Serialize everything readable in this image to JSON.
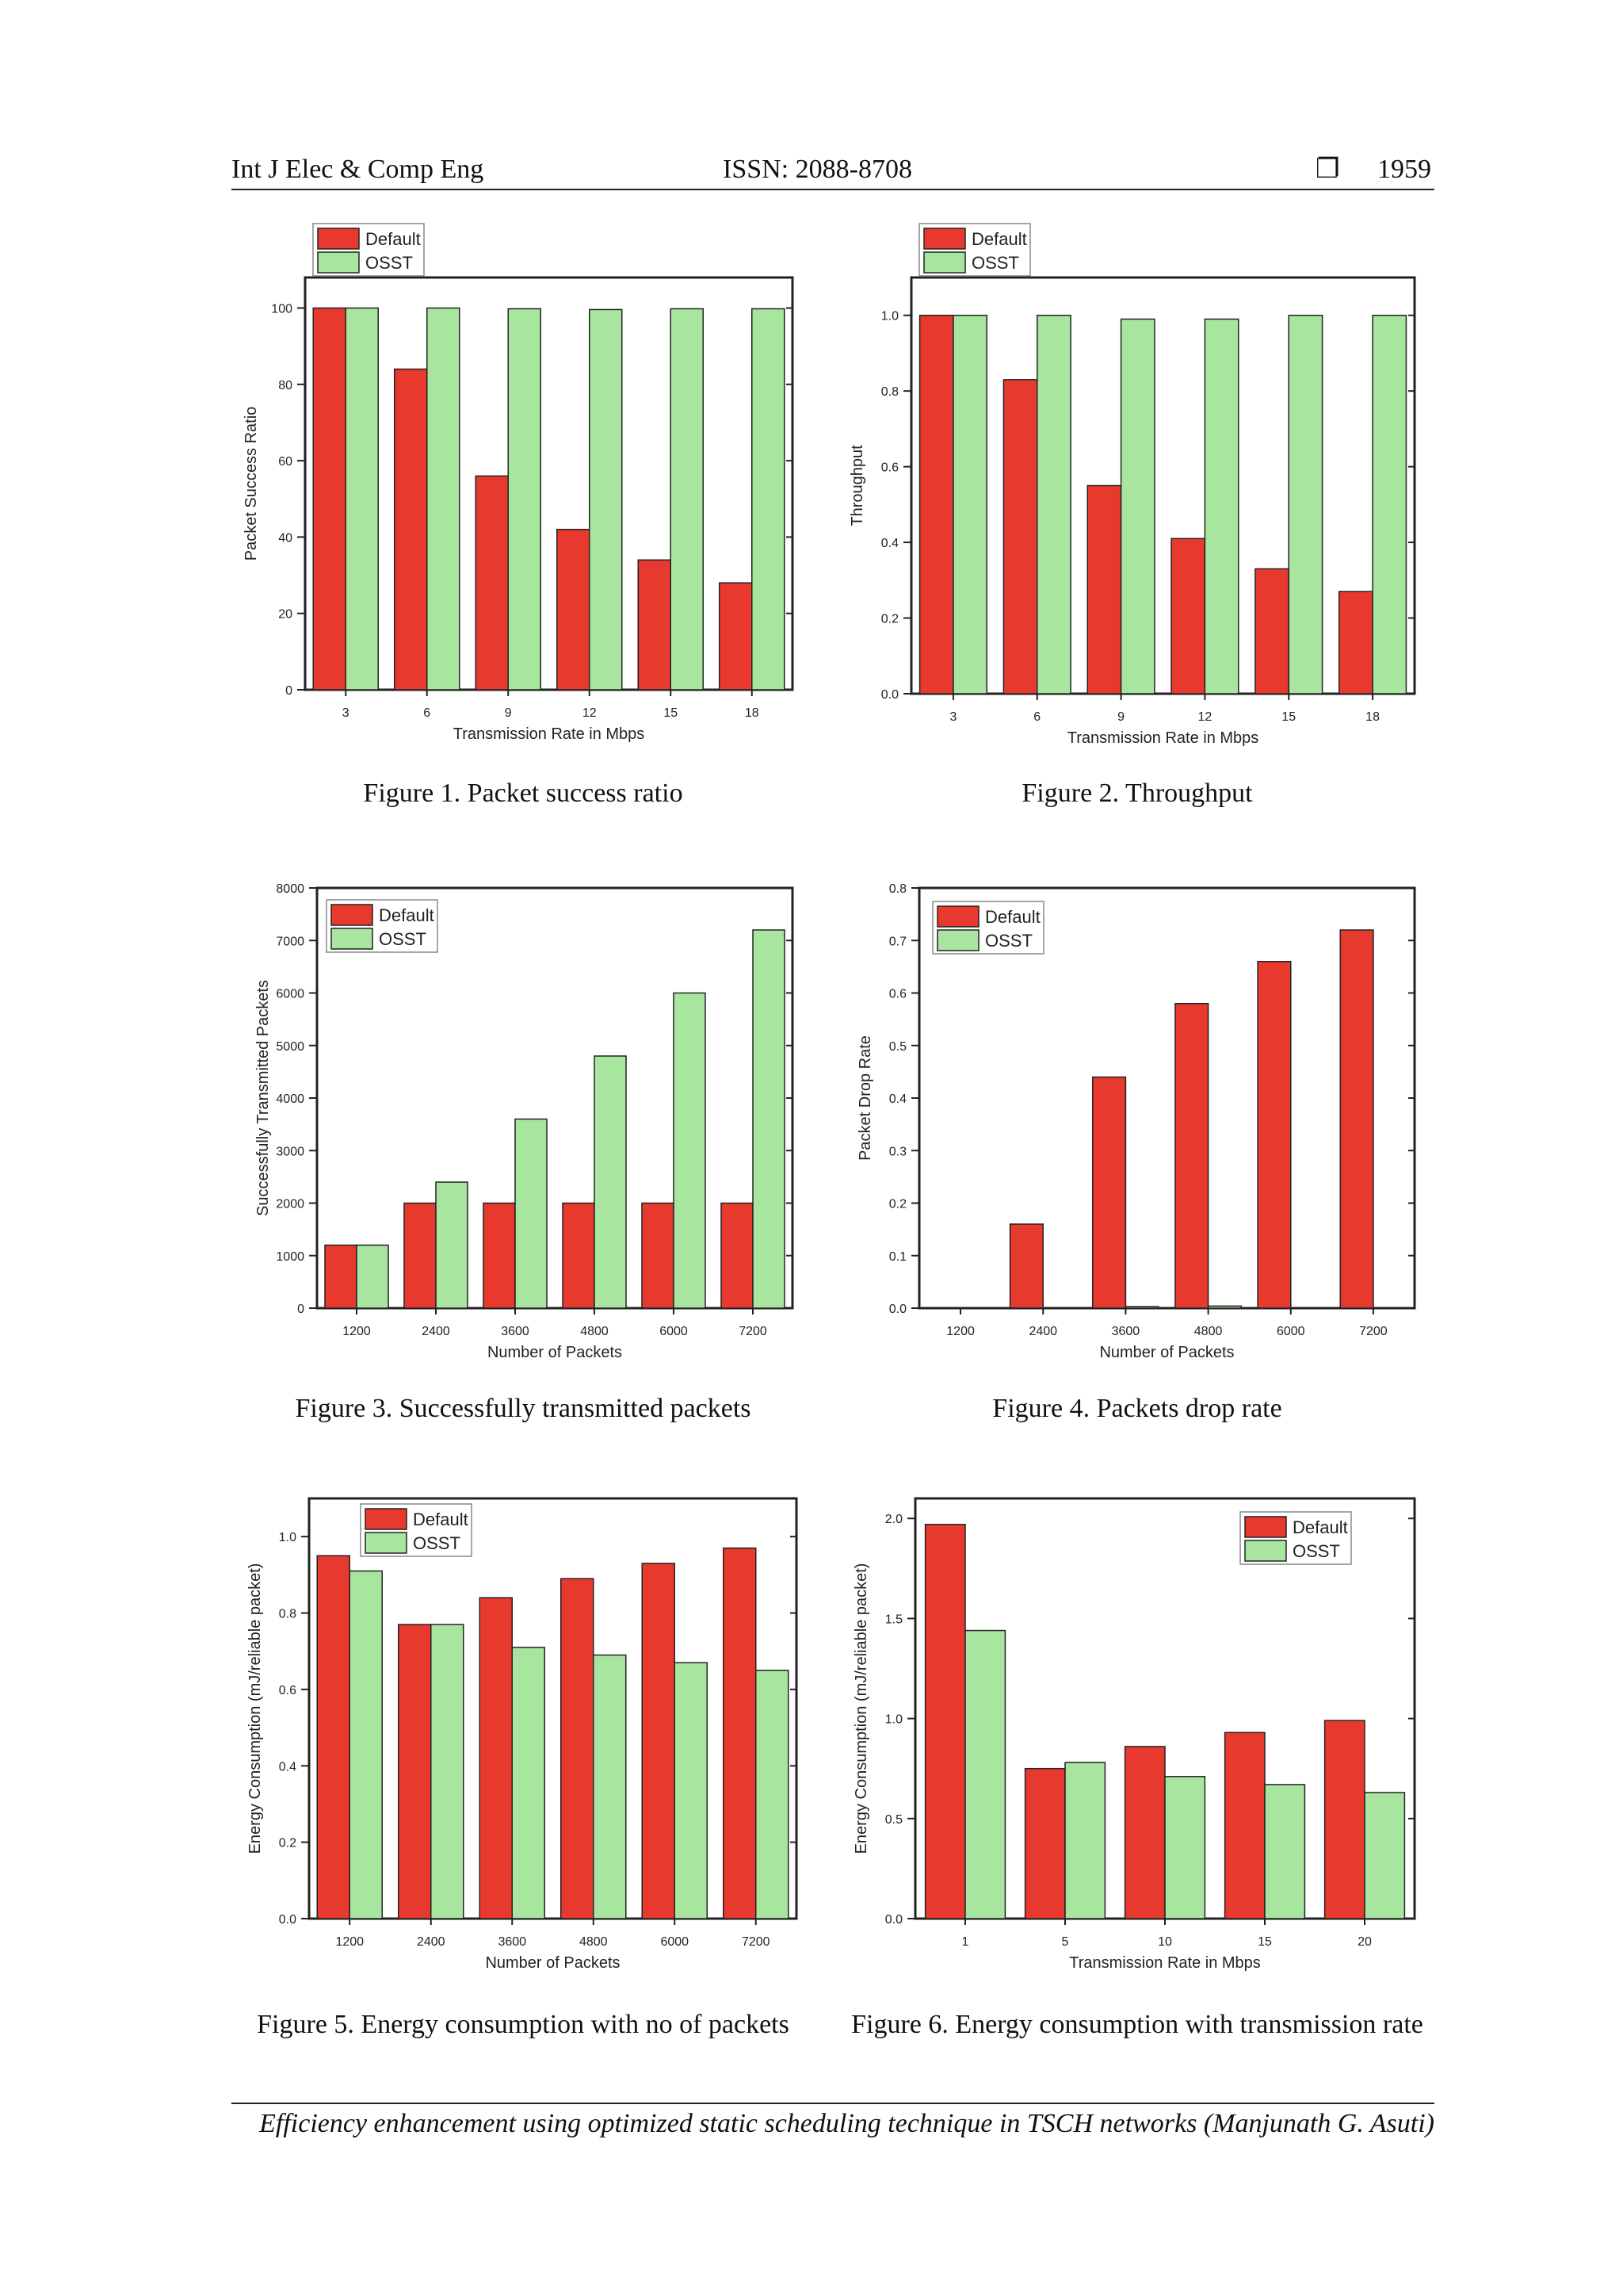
{
  "header": {
    "journal": "Int J Elec & Comp Eng",
    "issn": "ISSN: 2088-8708",
    "page_number": "1959"
  },
  "footer": {
    "text": "Efficiency enhancement using optimized static scheduling technique in TSCH networks (Manjunath G. Asuti)"
  },
  "colors": {
    "default": "#e8392f",
    "osst": "#a8e6a0"
  },
  "figures": [
    {
      "caption": "Figure 1. Packet success ratio"
    },
    {
      "caption": "Figure 2. Throughput"
    },
    {
      "caption": "Figure 3. Successfully transmitted packets"
    },
    {
      "caption": "Figure 4. Packets drop rate"
    },
    {
      "caption": "Figure 5. Energy consumption with no of packets"
    },
    {
      "caption": "Figure 6. Energy consumption with transmission rate"
    }
  ],
  "chart_data": [
    {
      "type": "bar",
      "categories": [
        "3",
        "6",
        "9",
        "12",
        "15",
        "18"
      ],
      "series": [
        {
          "name": "Default",
          "values": [
            100,
            84,
            56,
            42,
            34,
            28
          ]
        },
        {
          "name": "OSST",
          "values": [
            100,
            100,
            99.8,
            99.6,
            99.8,
            99.8
          ]
        }
      ],
      "xlabel": "Transmission Rate in Mbps",
      "ylabel": "Packet Success Ratio",
      "ylim": [
        0,
        108
      ],
      "yticks": [
        "0",
        "20",
        "40",
        "60",
        "80",
        "100"
      ],
      "ytick_values": [
        0,
        20,
        40,
        60,
        80,
        100
      ],
      "legend": "top-left-outside"
    },
    {
      "type": "bar",
      "categories": [
        "3",
        "6",
        "9",
        "12",
        "15",
        "18"
      ],
      "series": [
        {
          "name": "Default",
          "values": [
            1.0,
            0.83,
            0.55,
            0.41,
            0.33,
            0.27
          ]
        },
        {
          "name": "OSST",
          "values": [
            1.0,
            1.0,
            0.99,
            0.99,
            1.0,
            1.0
          ]
        }
      ],
      "xlabel": "Transmission Rate in Mbps",
      "ylabel": "Throughput",
      "ylim": [
        0,
        1.1
      ],
      "yticks": [
        "0.0",
        "0.2",
        "0.4",
        "0.6",
        "0.8",
        "1.0"
      ],
      "ytick_values": [
        0,
        0.2,
        0.4,
        0.6,
        0.8,
        1.0
      ],
      "legend": "top-left-outside"
    },
    {
      "type": "bar",
      "categories": [
        "1200",
        "2400",
        "3600",
        "4800",
        "6000",
        "7200"
      ],
      "series": [
        {
          "name": "Default",
          "values": [
            1200,
            2000,
            2000,
            2000,
            2000,
            2000
          ]
        },
        {
          "name": "OSST",
          "values": [
            1200,
            2400,
            3600,
            4800,
            6000,
            7200
          ]
        }
      ],
      "xlabel": "Number of Packets",
      "ylabel": "Successfully Transmitted Packets",
      "ylim": [
        0,
        8000
      ],
      "yticks": [
        "0",
        "1000",
        "2000",
        "3000",
        "4000",
        "5000",
        "6000",
        "7000",
        "8000"
      ],
      "ytick_values": [
        0,
        1000,
        2000,
        3000,
        4000,
        5000,
        6000,
        7000,
        8000
      ],
      "legend": "top-left"
    },
    {
      "type": "bar",
      "categories": [
        "1200",
        "2400",
        "3600",
        "4800",
        "6000",
        "7200"
      ],
      "series": [
        {
          "name": "Default",
          "values": [
            0,
            0.16,
            0.44,
            0.58,
            0.66,
            0.72
          ]
        },
        {
          "name": "OSST",
          "values": [
            0,
            0,
            0.003,
            0.004,
            0,
            0
          ]
        }
      ],
      "xlabel": "Number of Packets",
      "ylabel": "Packet Drop Rate",
      "ylim": [
        0,
        0.8
      ],
      "yticks": [
        "0.0",
        "0.1",
        "0.2",
        "0.3",
        "0.4",
        "0.5",
        "0.6",
        "0.7",
        "0.8"
      ],
      "ytick_values": [
        0,
        0.1,
        0.2,
        0.3,
        0.4,
        0.5,
        0.6,
        0.7,
        0.8
      ],
      "legend": "top-left"
    },
    {
      "type": "bar",
      "categories": [
        "1200",
        "2400",
        "3600",
        "4800",
        "6000",
        "7200"
      ],
      "series": [
        {
          "name": "Default",
          "values": [
            0.95,
            0.77,
            0.84,
            0.89,
            0.93,
            0.97
          ]
        },
        {
          "name": "OSST",
          "values": [
            0.91,
            0.77,
            0.71,
            0.69,
            0.67,
            0.65
          ]
        }
      ],
      "xlabel": "Number of Packets",
      "ylabel": "Energy Consumption (mJ/reliable packet)",
      "ylim": [
        0,
        1.1
      ],
      "yticks": [
        "0.0",
        "0.2",
        "0.4",
        "0.6",
        "0.8",
        "1.0"
      ],
      "ytick_values": [
        0,
        0.2,
        0.4,
        0.6,
        0.8,
        1.0
      ],
      "legend": "top-center"
    },
    {
      "type": "bar",
      "categories": [
        "1",
        "5",
        "10",
        "15",
        "20"
      ],
      "series": [
        {
          "name": "Default",
          "values": [
            1.97,
            0.75,
            0.86,
            0.93,
            0.99
          ]
        },
        {
          "name": "OSST",
          "values": [
            1.44,
            0.78,
            0.71,
            0.67,
            0.63
          ]
        }
      ],
      "xlabel": "Transmission Rate in Mbps",
      "ylabel": "Energy Consumption (mJ/reliable packet)",
      "ylim": [
        0,
        2.1
      ],
      "yticks": [
        "0.0",
        "0.5",
        "1.0",
        "1.5",
        "2.0"
      ],
      "ytick_values": [
        0,
        0.5,
        1.0,
        1.5,
        2.0
      ],
      "legend": "top-right"
    }
  ]
}
